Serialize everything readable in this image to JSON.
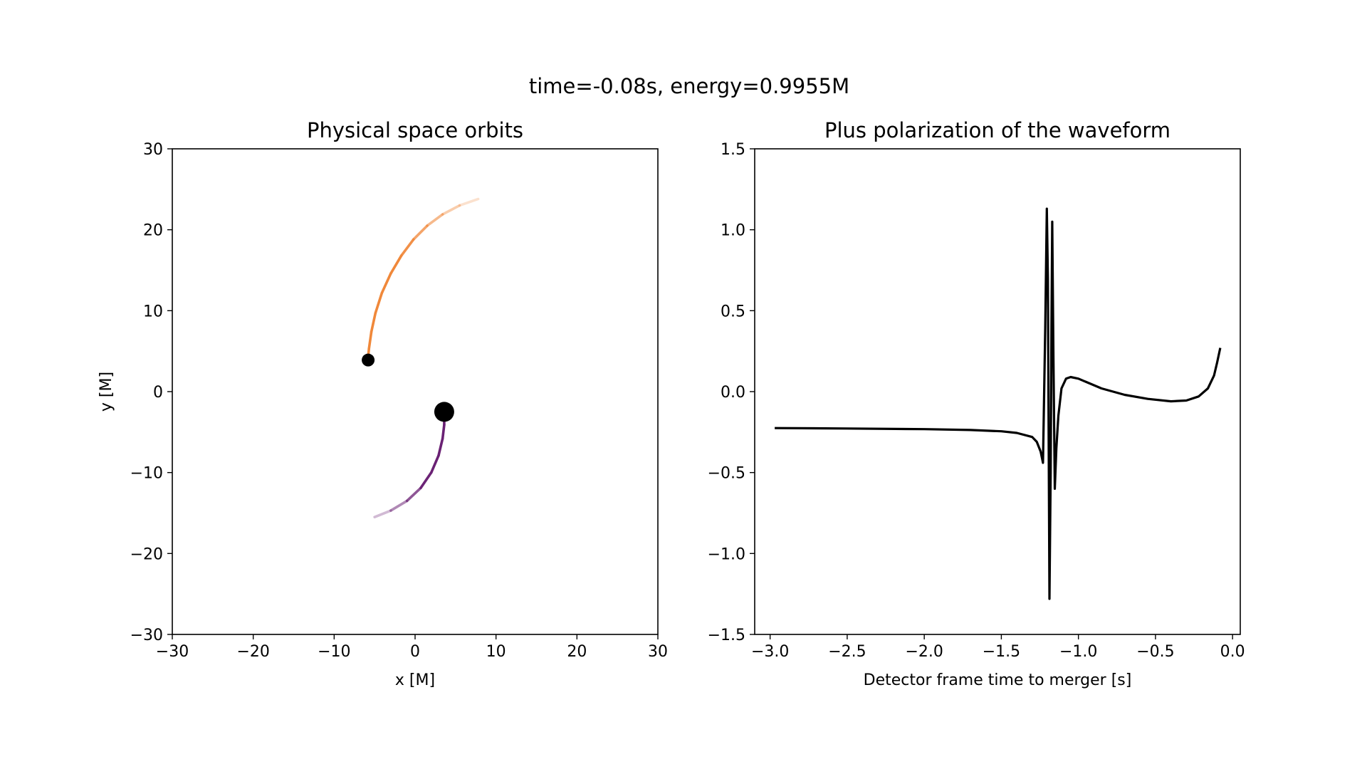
{
  "figure": {
    "suptitle": "time=-0.08s, energy=0.9955M"
  },
  "chart_data": [
    {
      "type": "scatter",
      "title": "Physical space orbits",
      "xlabel": "x [M]",
      "ylabel": "y [M]",
      "xlim": [
        -30,
        30
      ],
      "ylim": [
        -30,
        30
      ],
      "xticks": [
        -30,
        -20,
        -10,
        0,
        10,
        20,
        30
      ],
      "yticks": [
        -30,
        -20,
        -10,
        0,
        10,
        20,
        30
      ],
      "xtick_labels": [
        "−30",
        "−20",
        "−10",
        "0",
        "10",
        "20",
        "30"
      ],
      "ytick_labels": [
        "−30",
        "−20",
        "−10",
        "0",
        "10",
        "20",
        "30"
      ],
      "grid": false,
      "series": [
        {
          "color": "#f0883a",
          "trail": [
            [
              7.8,
              23.8
            ],
            [
              5.5,
              23.0
            ],
            [
              3.4,
              21.9
            ],
            [
              1.5,
              20.5
            ],
            [
              -0.2,
              18.8
            ],
            [
              -1.7,
              16.8
            ],
            [
              -3.0,
              14.6
            ],
            [
              -4.1,
              12.2
            ],
            [
              -4.9,
              9.7
            ],
            [
              -5.4,
              7.4
            ],
            [
              -5.7,
              5.3
            ],
            [
              -5.8,
              4.3
            ]
          ],
          "body": {
            "x": -5.8,
            "y": 3.9,
            "size": "small",
            "color": "#000000"
          }
        },
        {
          "color": "#6a2174",
          "trail": [
            [
              -5.0,
              -15.5
            ],
            [
              -3.0,
              -14.7
            ],
            [
              -1.0,
              -13.5
            ],
            [
              0.7,
              -11.9
            ],
            [
              2.0,
              -10.0
            ],
            [
              2.9,
              -7.9
            ],
            [
              3.4,
              -5.8
            ],
            [
              3.6,
              -4.1
            ],
            [
              3.6,
              -2.9
            ]
          ],
          "body": {
            "x": 3.6,
            "y": -2.5,
            "size": "large",
            "color": "#000000"
          }
        }
      ]
    },
    {
      "type": "line",
      "title": "Plus polarization of the waveform",
      "xlabel": "Detector frame time to merger [s]",
      "ylabel": "",
      "xlim": [
        -3.1,
        0.05
      ],
      "ylim": [
        -1.5,
        1.5
      ],
      "xticks": [
        -3.0,
        -2.5,
        -2.0,
        -1.5,
        -1.0,
        -0.5,
        0.0
      ],
      "yticks": [
        -1.5,
        -1.0,
        -0.5,
        0.0,
        0.5,
        1.0,
        1.5
      ],
      "xtick_labels": [
        "−3.0",
        "−2.5",
        "−2.0",
        "−1.5",
        "−1.0",
        "−0.5",
        "0.0"
      ],
      "ytick_labels": [
        "−1.5",
        "−1.0",
        "−0.5",
        "0.0",
        "0.5",
        "1.0",
        "1.5"
      ],
      "grid": false,
      "series": [
        {
          "color": "#000000",
          "x": [
            -2.97,
            -2.5,
            -2.0,
            -1.7,
            -1.5,
            -1.4,
            -1.3,
            -1.27,
            -1.245,
            -1.23,
            -1.215,
            -1.205,
            -1.198,
            -1.188,
            -1.18,
            -1.175,
            -1.17,
            -1.162,
            -1.153,
            -1.143,
            -1.13,
            -1.11,
            -1.08,
            -1.05,
            -1.0,
            -0.95,
            -0.85,
            -0.7,
            -0.55,
            -0.4,
            -0.3,
            -0.22,
            -0.16,
            -0.12,
            -0.1,
            -0.08
          ],
          "y": [
            -0.225,
            -0.228,
            -0.232,
            -0.237,
            -0.245,
            -0.255,
            -0.28,
            -0.31,
            -0.37,
            -0.44,
            0.4,
            1.13,
            0.7,
            -1.28,
            -0.5,
            0.4,
            1.05,
            0.2,
            -0.6,
            -0.35,
            -0.15,
            0.02,
            0.08,
            0.09,
            0.08,
            0.06,
            0.02,
            -0.02,
            -0.045,
            -0.06,
            -0.055,
            -0.03,
            0.02,
            0.1,
            0.18,
            0.27
          ]
        }
      ]
    }
  ]
}
